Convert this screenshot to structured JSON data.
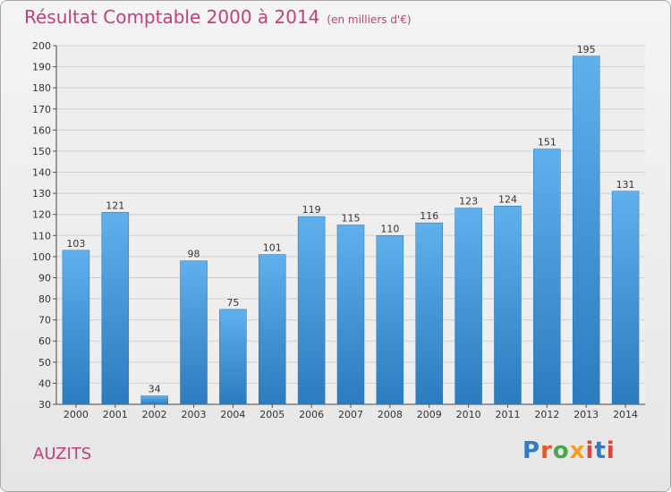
{
  "header": {
    "title": "Résultat Comptable 2000 à 2014",
    "subtitle": "(en milliers d'€)"
  },
  "footer": {
    "commune": "AUZITS",
    "logo_text": "Proxiti"
  },
  "colors": {
    "bar_top": "#5fb0ec",
    "bar_bottom": "#2c7bbf",
    "title": "#c0407a",
    "grid": "#d0d0d0"
  },
  "chart_data": {
    "type": "bar",
    "title": "Résultat Comptable 2000 à 2014",
    "subtitle": "(en milliers d'€)",
    "categories": [
      "2000",
      "2001",
      "2002",
      "2003",
      "2004",
      "2005",
      "2006",
      "2007",
      "2008",
      "2009",
      "2010",
      "2011",
      "2012",
      "2013",
      "2014"
    ],
    "values": [
      103,
      121,
      34,
      98,
      75,
      101,
      119,
      115,
      110,
      116,
      123,
      124,
      151,
      195,
      131
    ],
    "ylim": [
      30,
      200
    ],
    "yticks": [
      30,
      40,
      50,
      60,
      70,
      80,
      90,
      100,
      110,
      120,
      130,
      140,
      150,
      160,
      170,
      180,
      190,
      200
    ],
    "grid": true,
    "data_labels": true
  }
}
